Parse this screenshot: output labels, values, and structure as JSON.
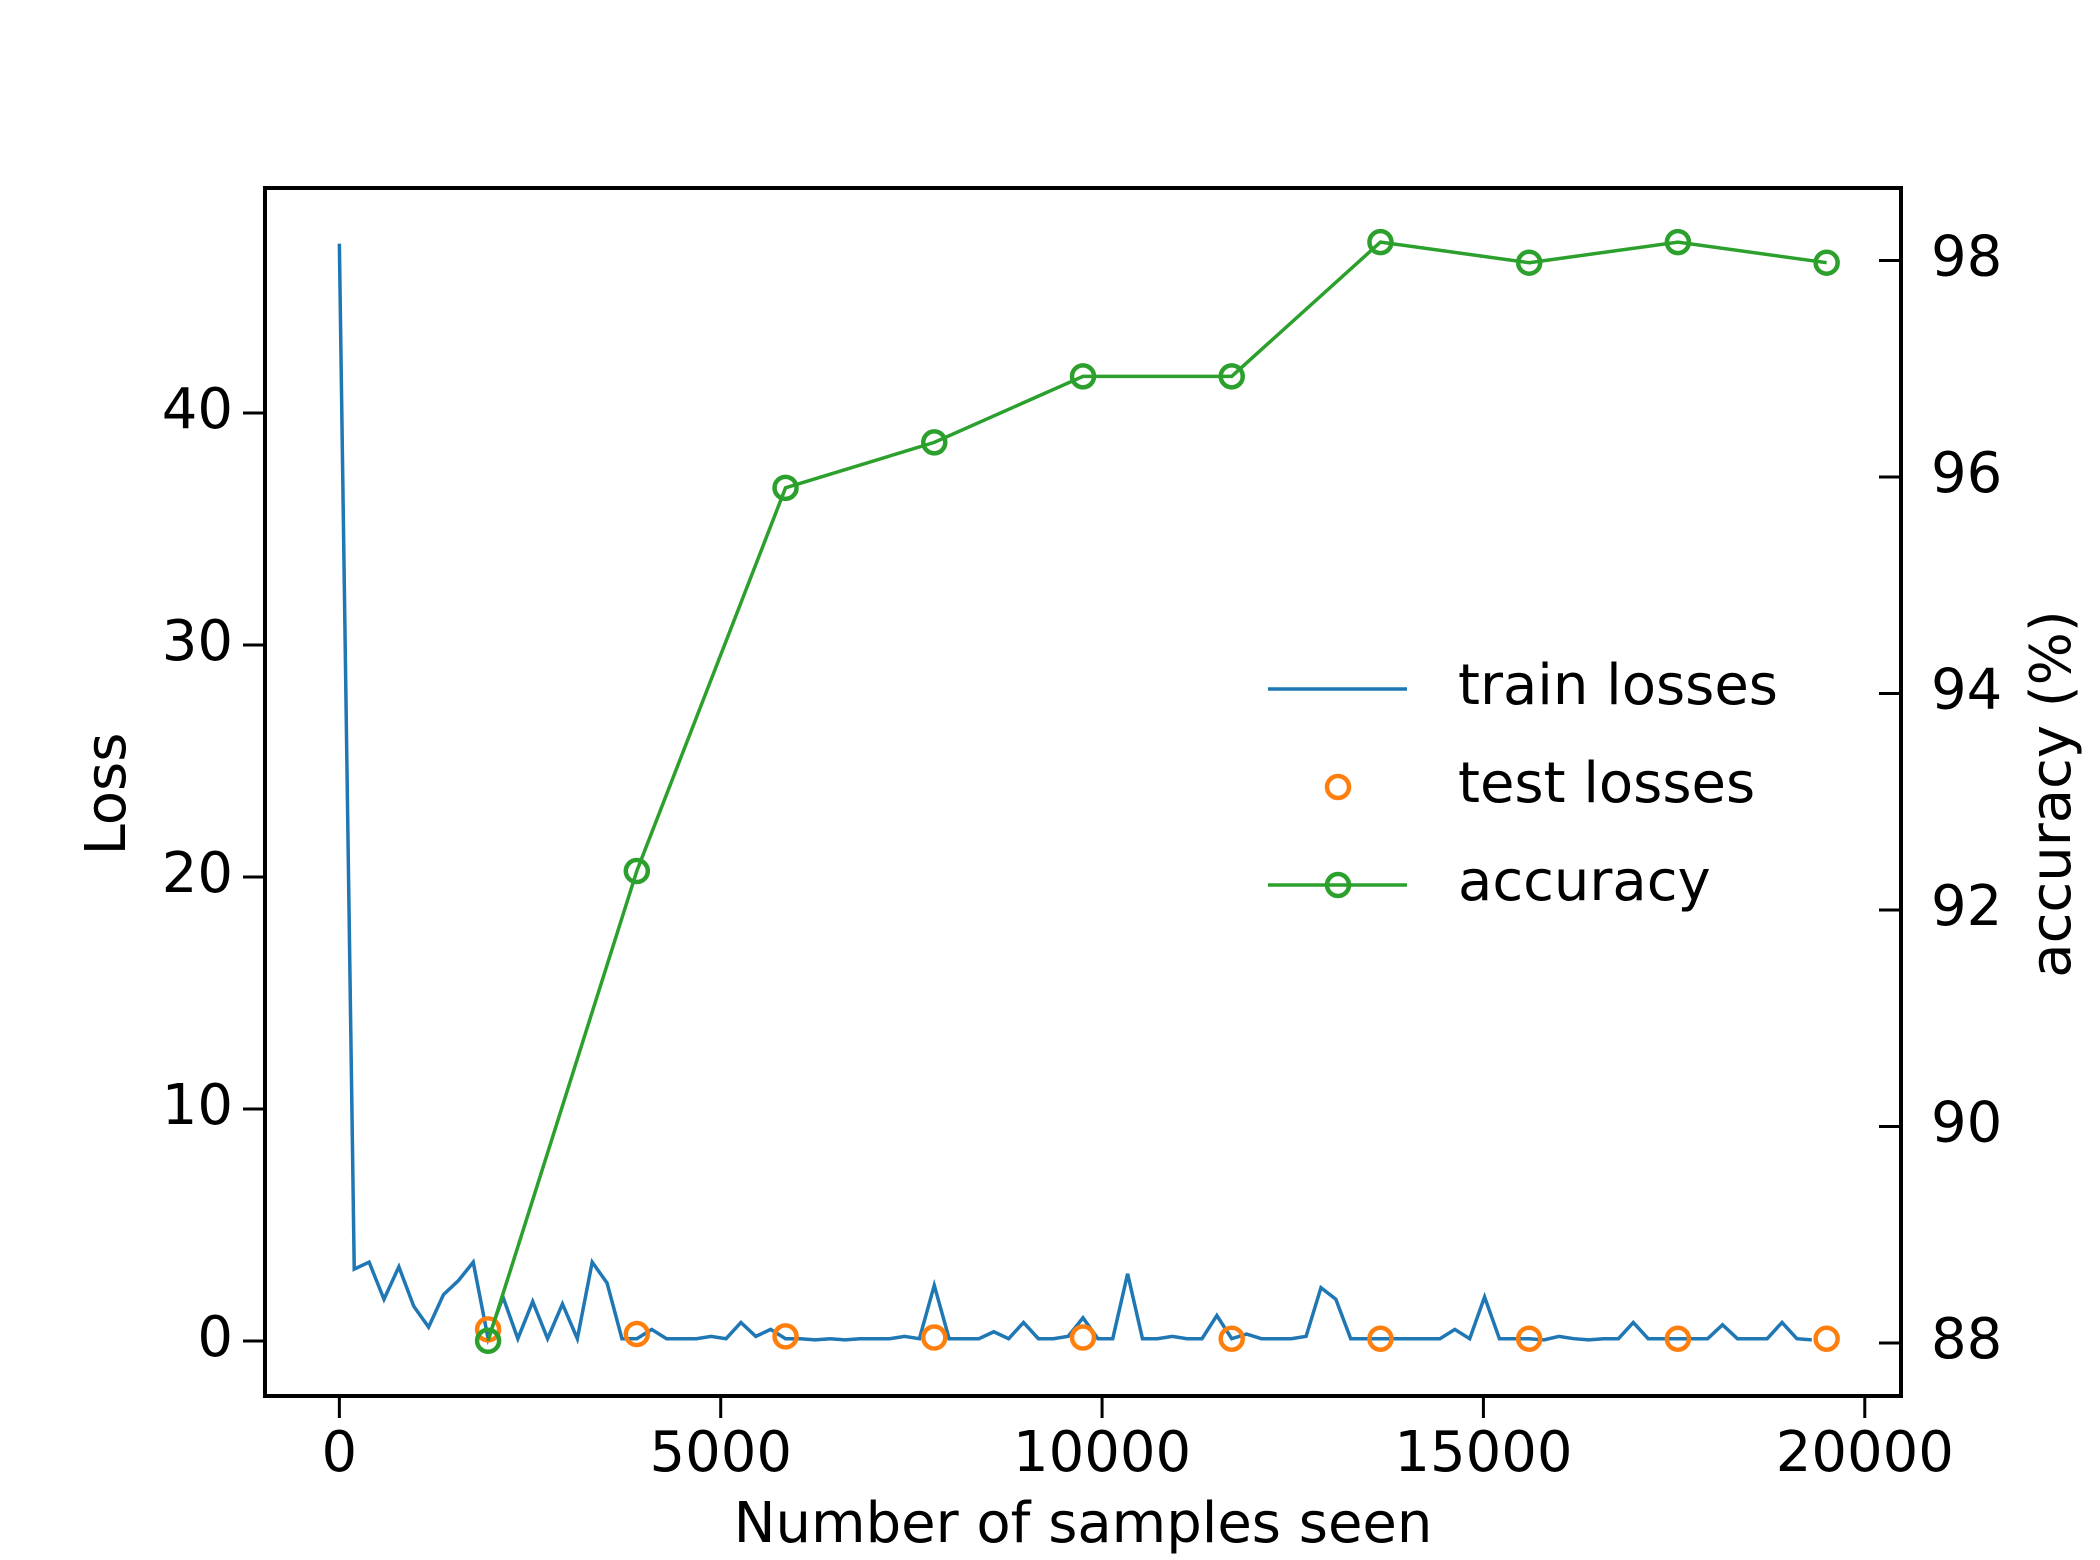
{
  "chart_data": {
    "type": "line",
    "xlabel": "Number of samples seen",
    "ylabel": "Loss",
    "y2label": "accuracy (%)",
    "xlim": [
      -975,
      20475
    ],
    "xticks": [
      0,
      5000,
      10000,
      15000,
      20000
    ],
    "ylim": [
      -2.37,
      49.7
    ],
    "yticks": [
      0,
      10,
      20,
      30,
      40
    ],
    "y2lim": [
      87.51,
      98.67
    ],
    "y2ticks": [
      88,
      90,
      92,
      94,
      96,
      98
    ],
    "legend": "right",
    "series": [
      {
        "name": "train losses",
        "color": "#1f77b4",
        "style": "line",
        "x": [
          0,
          195,
          390,
          585,
          780,
          975,
          1170,
          1365,
          1560,
          1755,
          1950,
          2145,
          2340,
          2535,
          2730,
          2925,
          3120,
          3315,
          3510,
          3705,
          3900,
          4095,
          4290,
          4485,
          4680,
          4875,
          5070,
          5265,
          5460,
          5655,
          5850,
          6045,
          6240,
          6435,
          6630,
          6825,
          7020,
          7215,
          7410,
          7605,
          7800,
          7995,
          8190,
          8385,
          8580,
          8775,
          8970,
          9165,
          9360,
          9555,
          9750,
          9945,
          10140,
          10335,
          10530,
          10725,
          10920,
          11115,
          11310,
          11505,
          11700,
          11895,
          12090,
          12285,
          12480,
          12675,
          12870,
          13065,
          13260,
          13455,
          13650,
          13845,
          14040,
          14235,
          14430,
          14625,
          14820,
          15015,
          15210,
          15405,
          15600,
          15795,
          15990,
          16185,
          16380,
          16575,
          16770,
          16965,
          17160,
          17355,
          17550,
          17745,
          17940,
          18135,
          18330,
          18525,
          18720,
          18915,
          19110,
          19305
        ],
        "values": [
          47.3,
          3.1,
          3.4,
          1.8,
          3.2,
          1.5,
          0.6,
          2.0,
          2.6,
          3.4,
          0.1,
          1.9,
          0.1,
          1.7,
          0.1,
          1.6,
          0.1,
          3.4,
          2.5,
          0.1,
          0.1,
          0.5,
          0.1,
          0.1,
          0.1,
          0.2,
          0.1,
          0.8,
          0.2,
          0.5,
          0.1,
          0.1,
          0.05,
          0.1,
          0.05,
          0.1,
          0.1,
          0.1,
          0.2,
          0.1,
          2.4,
          0.1,
          0.1,
          0.1,
          0.4,
          0.1,
          0.8,
          0.1,
          0.1,
          0.2,
          1.0,
          0.1,
          0.1,
          2.9,
          0.1,
          0.1,
          0.2,
          0.1,
          0.1,
          1.1,
          0.1,
          0.3,
          0.1,
          0.1,
          0.1,
          0.2,
          2.3,
          1.8,
          0.1,
          0.1,
          0.1,
          0.1,
          0.1,
          0.1,
          0.1,
          0.5,
          0.1,
          1.9,
          0.1,
          0.1,
          0.1,
          0.05,
          0.2,
          0.1,
          0.05,
          0.1,
          0.1,
          0.8,
          0.1,
          0.1,
          0.1,
          0.1,
          0.1,
          0.7,
          0.1,
          0.1,
          0.1,
          0.8,
          0.1,
          0.05
        ]
      },
      {
        "name": "test losses",
        "color": "#ff7f0e",
        "style": "markers",
        "x": [
          1950,
          3900,
          5850,
          7800,
          9750,
          11700,
          13650,
          15600,
          17550,
          19500
        ],
        "values": [
          0.5,
          0.3,
          0.2,
          0.15,
          0.15,
          0.1,
          0.1,
          0.1,
          0.1,
          0.1
        ]
      },
      {
        "name": "accuracy",
        "color": "#2ca02c",
        "style": "line+markers",
        "axis": "y2",
        "x": [
          1950,
          3900,
          5850,
          7800,
          9750,
          11700,
          13650,
          15600,
          17550,
          19500
        ],
        "values": [
          88.02,
          92.36,
          95.9,
          96.32,
          96.93,
          96.93,
          98.17,
          97.98,
          98.17,
          97.98
        ]
      }
    ]
  }
}
